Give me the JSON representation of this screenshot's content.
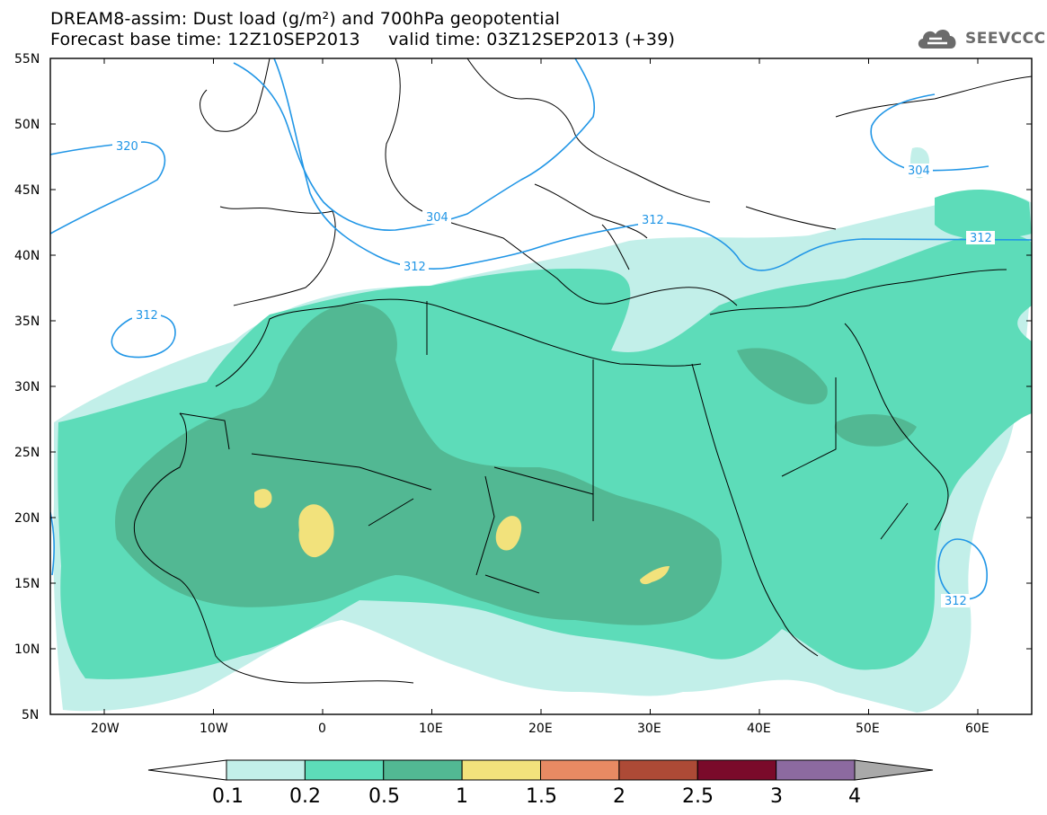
{
  "header": {
    "title_line1": "DREAM8-assim: Dust load (g/m²) and 700hPa geopotential",
    "title_line2": "Forecast base time: 12Z10SEP2013     valid time: 03Z12SEP2013 (+39)"
  },
  "logo": {
    "text": "SEEVCCC",
    "icon": "cloud-icon"
  },
  "map": {
    "lat_labels": [
      "55N",
      "50N",
      "45N",
      "40N",
      "35N",
      "30N",
      "25N",
      "20N",
      "15N",
      "10N",
      "5N"
    ],
    "lon_labels": [
      "20W",
      "10W",
      "0",
      "10E",
      "20E",
      "30E",
      "40E",
      "50E",
      "60E"
    ],
    "contour_labels": [
      "320",
      "304",
      "312",
      "312",
      "312",
      "304",
      "312",
      "312"
    ],
    "colors": {
      "level_01": "#c2efe9",
      "level_02": "#5ddcb9",
      "level_05": "#52b893",
      "level_10": "#f2e27c",
      "contour": "#2196e6"
    }
  },
  "colorbar": {
    "ticks": [
      "0.1",
      "0.2",
      "0.5",
      "1",
      "1.5",
      "2",
      "2.5",
      "3",
      "4"
    ],
    "colors": [
      "#c2efe9",
      "#5ddcb9",
      "#52b893",
      "#f2e27c",
      "#e88a63",
      "#ad4a36",
      "#7a0a2a",
      "#8c6aa0"
    ]
  }
}
